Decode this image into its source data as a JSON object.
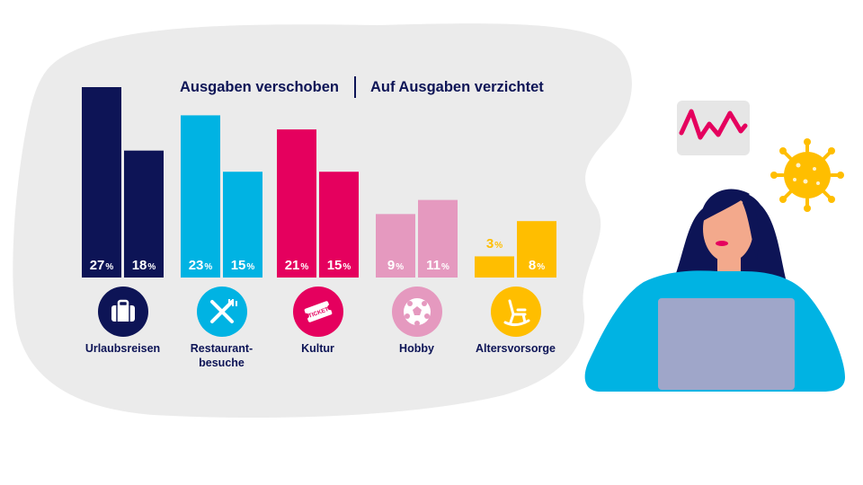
{
  "legend": {
    "series1": "Ausgaben verschoben",
    "series2": "Auf Ausgaben verzichtet"
  },
  "pct_sign": "%",
  "chart_data": {
    "type": "bar",
    "categories": [
      "Urlaubsreisen",
      "Restaurant-\nbesuche",
      "Kultur",
      "Hobby",
      "Altersvorsorge"
    ],
    "series": [
      {
        "name": "Ausgaben verschoben",
        "values": [
          27,
          23,
          21,
          9,
          3
        ]
      },
      {
        "name": "Auf Ausgaben verzichtet",
        "values": [
          18,
          15,
          15,
          11,
          8
        ]
      }
    ],
    "category_colors": [
      [
        "#0d1456",
        "#0d1456"
      ],
      [
        "#00b3e3",
        "#00b3e3"
      ],
      [
        "#e5005e",
        "#e5005e"
      ],
      [
        "#e599bf",
        "#e599bf"
      ],
      [
        "#ffbe00",
        "#ffbe00"
      ]
    ],
    "category_icons": [
      "suitcase-icon",
      "cutlery-icon",
      "ticket-icon",
      "football-icon",
      "rocking-chair-icon"
    ],
    "icon_texts": {
      "ticket": "TICKET"
    },
    "ylim": [
      0,
      27
    ],
    "legend_position": "top-center",
    "grid": false
  },
  "illustration": {
    "woman": "woman-with-laptop",
    "chart_card": "fluctuating-line-card-icon",
    "virus": "virus-icon",
    "colors": {
      "blob": "#ebebeb",
      "shirt": "#00b3e3",
      "laptop": "#9fa6c9",
      "hair": "#0d1456",
      "skin": "#f3a98c",
      "virus": "#ffbe00"
    }
  }
}
